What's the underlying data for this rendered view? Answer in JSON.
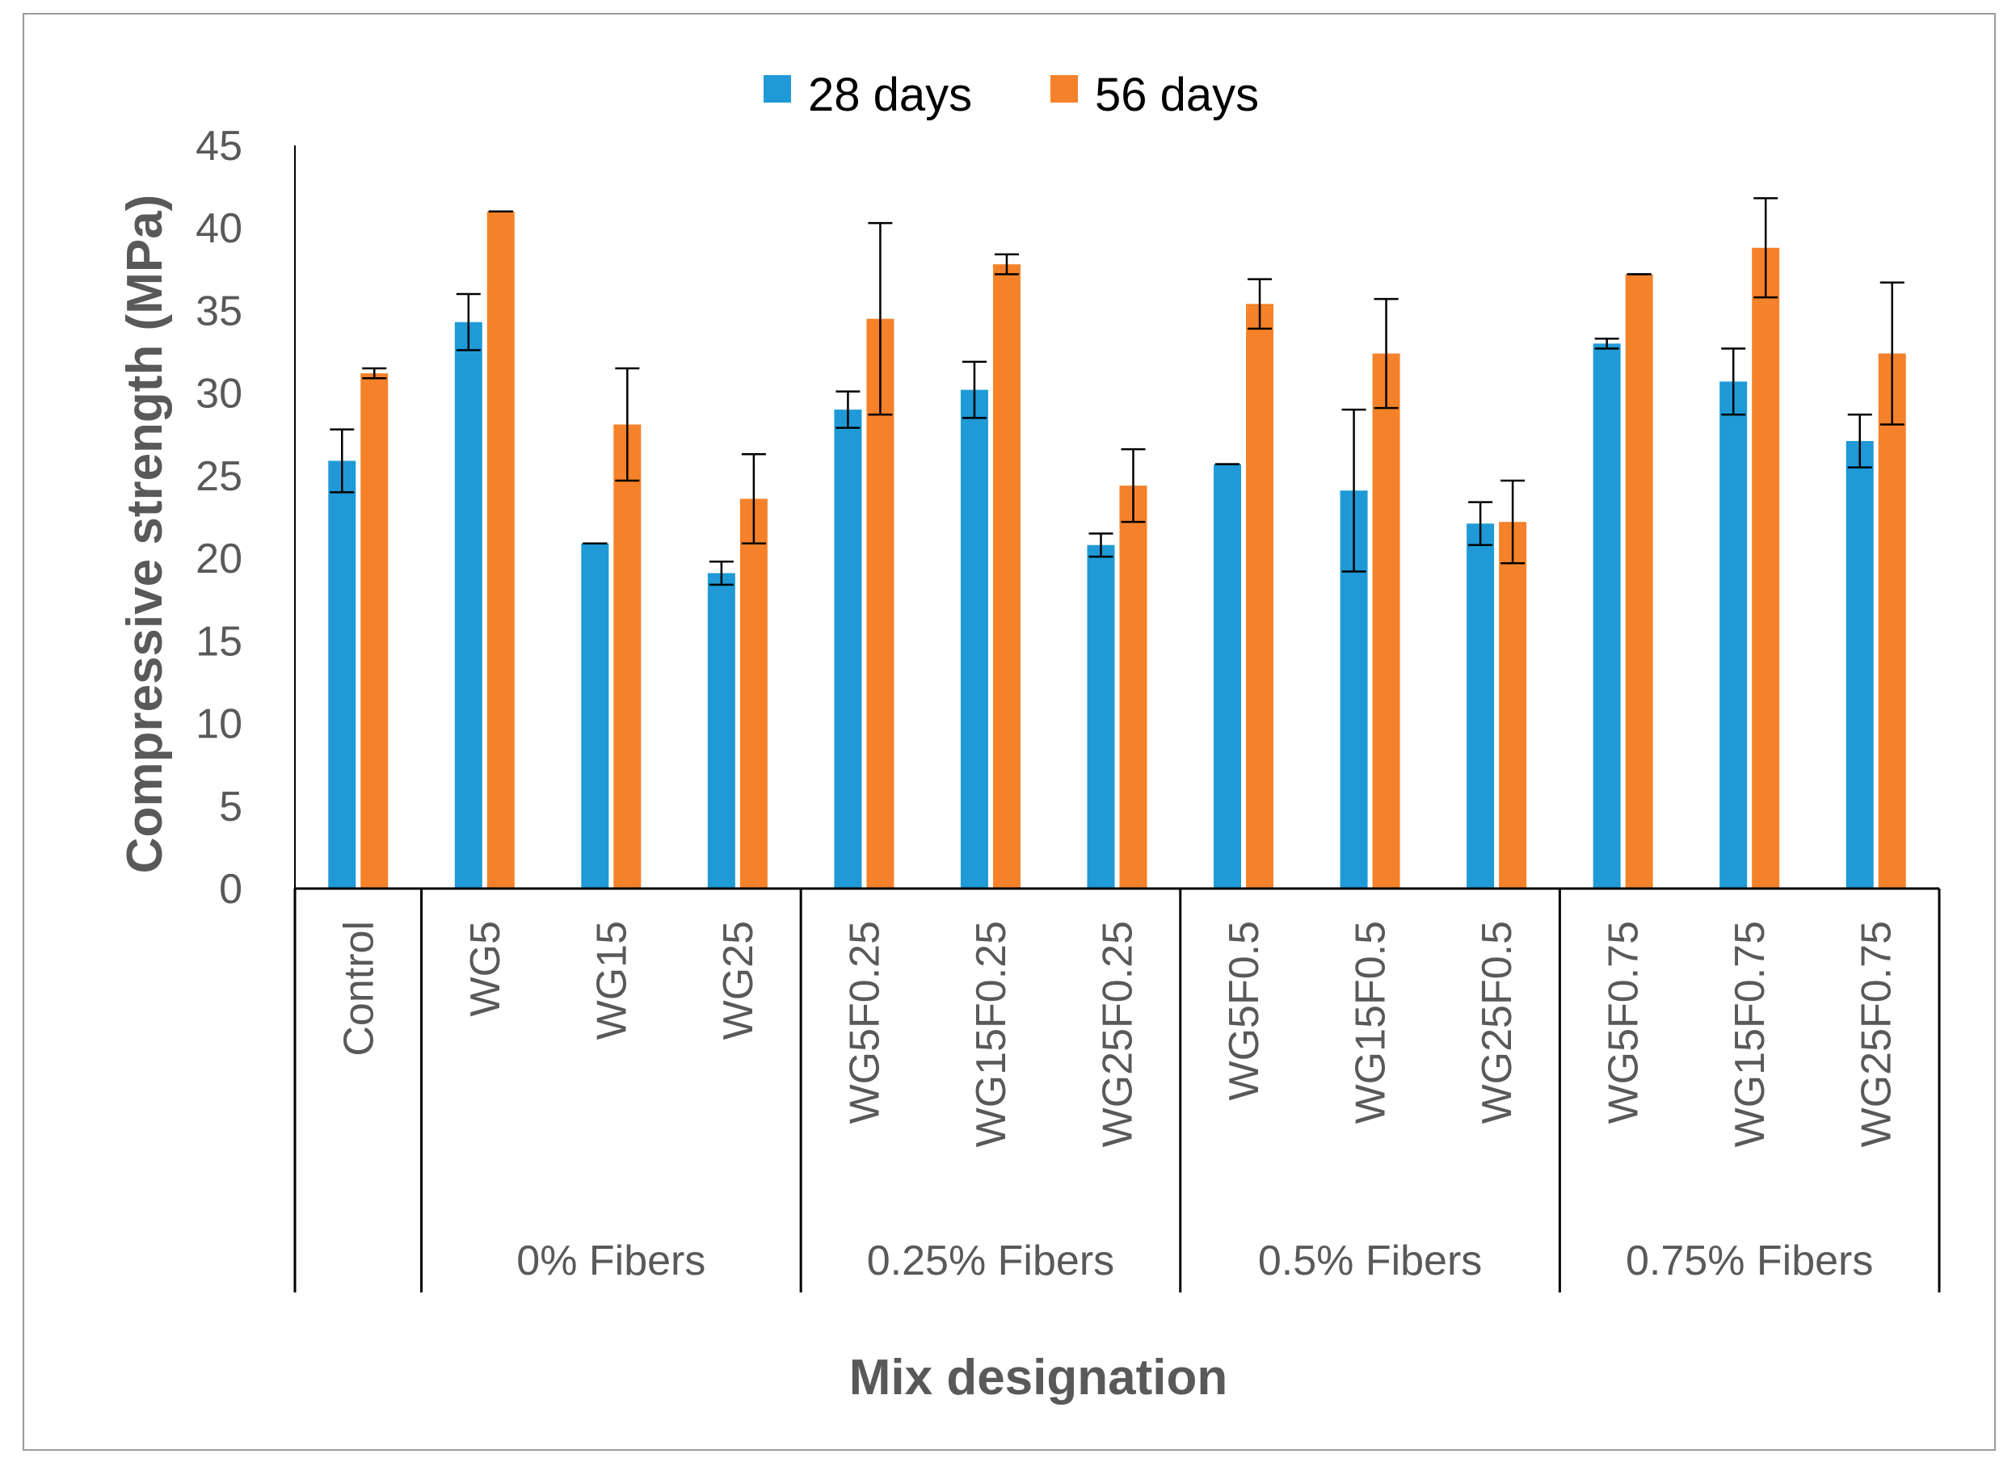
{
  "chart_data": {
    "type": "bar",
    "title": "",
    "xlabel": "Mix designation",
    "ylabel": "Compressive strength (MPa)",
    "ylim": [
      0,
      45
    ],
    "yticks": [
      0,
      5,
      10,
      15,
      20,
      25,
      30,
      35,
      40,
      45
    ],
    "grid": false,
    "legend_position": "top",
    "categories": [
      "Control",
      "WG5",
      "WG15",
      "WG25",
      "WG5F0.25",
      "WG15F0.25",
      "WG25F0.25",
      "WG5F0.5",
      "WG15F0.5",
      "WG25F0.5",
      "WG5F0.75",
      "WG15F0.75",
      "WG25F0.75"
    ],
    "groups": [
      {
        "label": "",
        "start": 0,
        "end": 0
      },
      {
        "label": "0% Fibers",
        "start": 1,
        "end": 3
      },
      {
        "label": "0.25% Fibers",
        "start": 4,
        "end": 6
      },
      {
        "label": "0.5% Fibers",
        "start": 7,
        "end": 9
      },
      {
        "label": "0.75% Fibers",
        "start": 10,
        "end": 12
      }
    ],
    "series": [
      {
        "name": "28 days",
        "color": "#1f9ad6",
        "values": [
          25.9,
          34.3,
          20.9,
          19.1,
          29.0,
          30.2,
          20.8,
          25.7,
          24.1,
          22.1,
          33.0,
          30.7,
          27.1
        ],
        "errors": [
          1.9,
          1.7,
          0.0,
          0.7,
          1.1,
          1.7,
          0.7,
          0.0,
          4.9,
          1.3,
          0.3,
          2.0,
          1.6
        ]
      },
      {
        "name": "56 days",
        "color": "#f5822a",
        "values": [
          31.2,
          41.0,
          28.1,
          23.6,
          34.5,
          37.8,
          24.4,
          35.4,
          32.4,
          22.2,
          37.2,
          38.8,
          32.4
        ],
        "errors": [
          0.3,
          0.0,
          3.4,
          2.7,
          5.8,
          0.6,
          2.2,
          1.5,
          3.3,
          2.5,
          0.0,
          3.0,
          4.3
        ]
      }
    ]
  }
}
